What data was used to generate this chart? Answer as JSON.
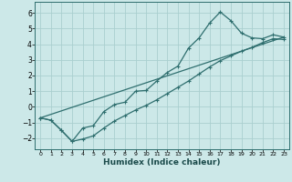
{
  "xlabel": "Humidex (Indice chaleur)",
  "ylabel": "",
  "bg_color": "#cce8e8",
  "line_color": "#2e6e6e",
  "grid_color": "#aacfcf",
  "xlim": [
    -0.5,
    23.5
  ],
  "ylim": [
    -2.7,
    6.7
  ],
  "xticks": [
    0,
    1,
    2,
    3,
    4,
    5,
    6,
    7,
    8,
    9,
    10,
    11,
    12,
    13,
    14,
    15,
    16,
    17,
    18,
    19,
    20,
    21,
    22,
    23
  ],
  "yticks": [
    -2,
    -1,
    0,
    1,
    2,
    3,
    4,
    5,
    6
  ],
  "curve1_x": [
    0,
    1,
    2,
    3,
    4,
    5,
    6,
    7,
    8,
    9,
    10,
    11,
    12,
    13,
    14,
    15,
    16,
    17,
    18,
    19,
    20,
    21,
    22,
    23
  ],
  "curve1_y": [
    -0.7,
    -0.85,
    -1.5,
    -2.2,
    -1.35,
    -1.2,
    -0.3,
    0.15,
    0.3,
    1.0,
    1.05,
    1.65,
    2.2,
    2.6,
    3.75,
    4.4,
    5.35,
    6.05,
    5.5,
    4.7,
    4.4,
    4.35,
    4.6,
    4.45
  ],
  "curve2_x": [
    0,
    1,
    2,
    3,
    4,
    5,
    6,
    7,
    8,
    9,
    10,
    11,
    12,
    13,
    14,
    15,
    16,
    17,
    18,
    19,
    20,
    21,
    22,
    23
  ],
  "curve2_y": [
    -0.7,
    -0.85,
    -1.5,
    -2.2,
    -2.05,
    -1.85,
    -1.35,
    -0.9,
    -0.55,
    -0.2,
    0.1,
    0.45,
    0.85,
    1.25,
    1.65,
    2.1,
    2.55,
    2.95,
    3.25,
    3.55,
    3.8,
    4.1,
    4.35,
    4.3
  ],
  "line_x": [
    0,
    23
  ],
  "line_y": [
    -0.7,
    4.45
  ]
}
